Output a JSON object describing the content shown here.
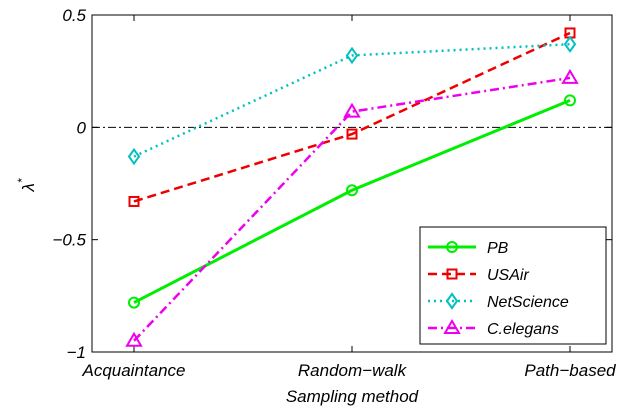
{
  "chart_data": {
    "type": "line",
    "categories": [
      "Acquaintance",
      "Random−walk",
      "Path−based"
    ],
    "xlabel": "Sampling method",
    "ylabel_main": "λ",
    "ylabel_sup": "*",
    "ylim": [
      -1,
      0.5
    ],
    "yticks": [
      -1,
      -0.5,
      0,
      0.5
    ],
    "ytick_labels": [
      "−1",
      "−0.5",
      "0",
      "0.5"
    ],
    "grid": false,
    "reference_line": {
      "y": 0,
      "style": "dash-dot",
      "color": "#000000"
    },
    "legend_position": "bottom-right",
    "series": [
      {
        "name": "PB",
        "values": [
          -0.78,
          -0.28,
          0.12
        ],
        "color": "#00ee00",
        "dash": "solid",
        "marker": "circle"
      },
      {
        "name": "USAir",
        "values": [
          -0.33,
          -0.03,
          0.42
        ],
        "color": "#ee0000",
        "dash": "dashed",
        "marker": "square"
      },
      {
        "name": "NetScience",
        "values": [
          -0.13,
          0.32,
          0.37
        ],
        "color": "#00c0c0",
        "dash": "dotted",
        "marker": "diamond"
      },
      {
        "name": "C.elegans",
        "values": [
          -0.95,
          0.07,
          0.22
        ],
        "color": "#ee00ee",
        "dash": "dashdot",
        "marker": "triangle"
      }
    ]
  }
}
